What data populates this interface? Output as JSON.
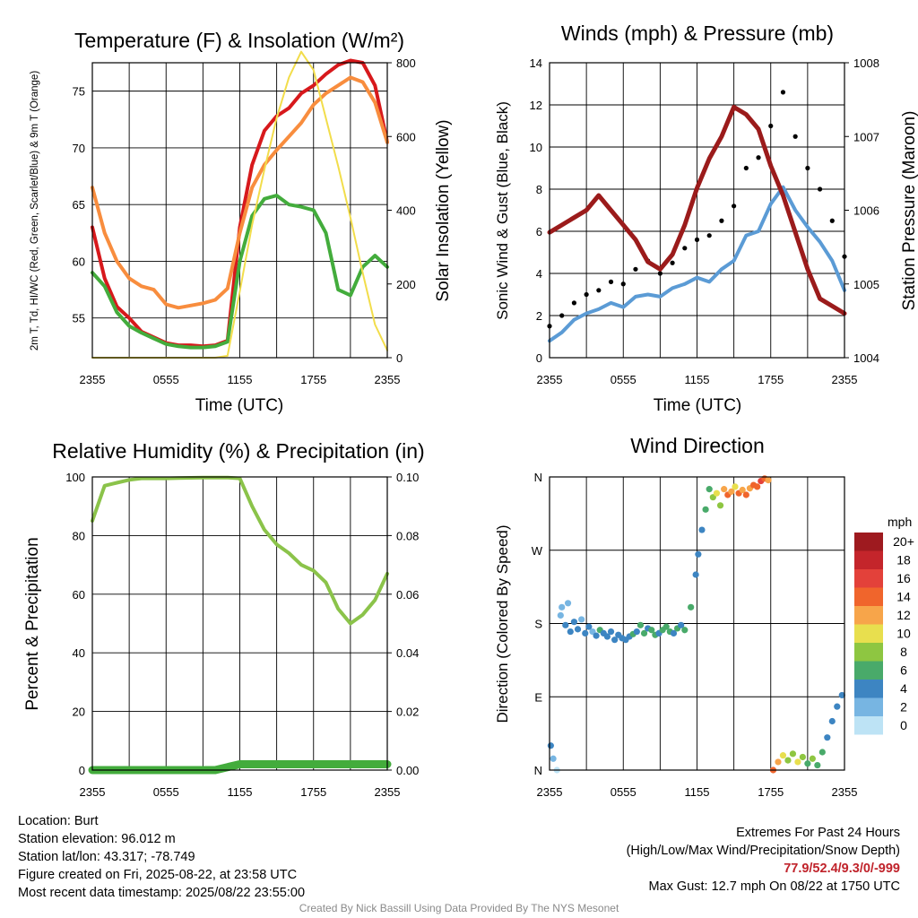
{
  "chart_data": [
    {
      "type": "line",
      "title": "Temperature (F) & Insolation (W/m²)",
      "xlabel": "Time (UTC)",
      "ylabel": "2m T, Td, HI/WC (Red, Green, Scarlet/Blue) & 9m T (Orange)",
      "ylabel2": "Solar Insolation (Yellow)",
      "x_ticks": [
        "2355",
        "0555",
        "1155",
        "1755",
        "2355"
      ],
      "y_ticks": [
        55,
        60,
        65,
        70,
        75
      ],
      "y2_ticks": [
        0,
        200,
        400,
        600,
        800
      ],
      "ylim": [
        51.5,
        77.5
      ],
      "y2lim": [
        0,
        800
      ],
      "x": [
        0,
        1,
        2,
        3,
        4,
        5,
        6,
        7,
        8,
        9,
        10,
        11,
        12,
        13,
        14,
        15,
        16,
        17,
        18,
        19,
        20,
        21,
        22,
        23,
        24
      ],
      "series": [
        {
          "color": "#d7191c",
          "axis": "left",
          "values": [
            63.0,
            58.5,
            56.0,
            55.0,
            53.8,
            53.3,
            52.8,
            52.6,
            52.6,
            52.5,
            52.6,
            53.0,
            63.0,
            68.5,
            71.5,
            72.8,
            73.5,
            74.8,
            75.5,
            76.5,
            77.3,
            77.7,
            77.5,
            75.5,
            70.5
          ]
        },
        {
          "color": "#f88d3e",
          "axis": "left",
          "values": [
            66.5,
            62.5,
            60.0,
            58.5,
            57.8,
            57.5,
            56.2,
            55.9,
            56.1,
            56.3,
            56.6,
            57.6,
            62.5,
            66.5,
            68.5,
            69.8,
            71.0,
            72.2,
            73.8,
            74.8,
            75.5,
            76.2,
            75.8,
            74.0,
            70.5
          ]
        },
        {
          "color": "#43ac3c",
          "axis": "left",
          "values": [
            59.0,
            57.8,
            55.5,
            54.3,
            53.7,
            53.2,
            52.7,
            52.5,
            52.4,
            52.4,
            52.5,
            52.9,
            60.0,
            64.0,
            65.5,
            65.8,
            65.0,
            64.8,
            64.5,
            62.5,
            57.5,
            57.0,
            59.5,
            60.5,
            59.5
          ]
        },
        {
          "color": "#f2dd4b",
          "axis": "right",
          "values": [
            0,
            0,
            0,
            0,
            0,
            0,
            0,
            0,
            0,
            0,
            0,
            5,
            180,
            360,
            510,
            650,
            760,
            830,
            780,
            650,
            520,
            380,
            230,
            90,
            20
          ]
        }
      ]
    },
    {
      "type": "line",
      "title": "Winds (mph) & Pressure (mb)",
      "xlabel": "Time (UTC)",
      "ylabel": "Sonic Wind & Gust (Blue, Black)",
      "ylabel2": "Station Pressure (Maroon)",
      "x_ticks": [
        "2355",
        "0555",
        "1155",
        "1755",
        "2355"
      ],
      "y_ticks": [
        0,
        2,
        4,
        6,
        8,
        10,
        12,
        14
      ],
      "y2_ticks": [
        1004,
        1005,
        1006,
        1007,
        1008
      ],
      "ylim": [
        0,
        14
      ],
      "y2lim": [
        1004,
        1008
      ],
      "x": [
        0,
        1,
        2,
        3,
        4,
        5,
        6,
        7,
        8,
        9,
        10,
        11,
        12,
        13,
        14,
        15,
        16,
        17,
        18,
        19,
        20,
        21,
        22,
        23,
        24
      ],
      "series": [
        {
          "color": "#5b9bd5",
          "axis": "left",
          "values": [
            0.8,
            1.2,
            1.8,
            2.1,
            2.3,
            2.6,
            2.4,
            2.9,
            3.0,
            2.9,
            3.3,
            3.5,
            3.8,
            3.6,
            4.2,
            4.6,
            5.8,
            6.0,
            7.3,
            8.1,
            7.0,
            6.2,
            5.5,
            4.6,
            3.2
          ]
        },
        {
          "color": "#000000",
          "axis": "left",
          "values": [
            1.5,
            2.0,
            2.6,
            3.0,
            3.2,
            3.6,
            3.5,
            4.2,
            4.6,
            4.0,
            4.5,
            5.2,
            5.6,
            5.8,
            6.5,
            7.2,
            9.0,
            9.5,
            11.0,
            12.6,
            10.5,
            9.0,
            8.0,
            6.5,
            4.8
          ]
        },
        {
          "color": "#9b1b1b",
          "axis": "right",
          "values": [
            1005.7,
            1005.8,
            1005.9,
            1006.0,
            1006.2,
            1006.0,
            1005.8,
            1005.6,
            1005.3,
            1005.2,
            1005.4,
            1005.8,
            1006.3,
            1006.7,
            1007.0,
            1007.4,
            1007.3,
            1007.1,
            1006.6,
            1006.2,
            1005.7,
            1005.2,
            1004.8,
            1004.7,
            1004.6
          ]
        }
      ]
    },
    {
      "type": "line",
      "title": "Relative Humidity (%) & Precipitation (in)",
      "ylabel": "Percent & Precipitation",
      "x_ticks": [
        "2355",
        "0555",
        "1155",
        "1755",
        "2355"
      ],
      "y_ticks": [
        0,
        20,
        40,
        60,
        80,
        100
      ],
      "y2_ticks": [
        "0.00",
        "0.02",
        "0.04",
        "0.06",
        "0.08",
        "0.10"
      ],
      "ylim": [
        0,
        100
      ],
      "y2lim": [
        0,
        0.1
      ],
      "x": [
        0,
        1,
        2,
        3,
        4,
        5,
        6,
        7,
        8,
        9,
        10,
        11,
        12,
        13,
        14,
        15,
        16,
        17,
        18,
        19,
        20,
        21,
        22,
        23,
        24
      ],
      "series": [
        {
          "color": "#8bc34a",
          "axis": "left",
          "values": [
            85.0,
            97.0,
            98.0,
            99.0,
            99.5,
            99.5,
            99.5,
            99.6,
            99.7,
            99.8,
            99.8,
            99.8,
            99.5,
            90.0,
            82.0,
            77.0,
            74.0,
            70.0,
            68.0,
            64.0,
            55.0,
            50.0,
            53.0,
            58.0,
            67.0
          ]
        },
        {
          "color": "#43ac3c",
          "axis": "right",
          "values": [
            0,
            0,
            0,
            0,
            0,
            0,
            0,
            0,
            0,
            0,
            0,
            0.001,
            0.002,
            0.002,
            0.002,
            0.002,
            0.002,
            0.002,
            0.002,
            0.002,
            0.002,
            0.002,
            0.002,
            0.002,
            0.002
          ]
        }
      ]
    },
    {
      "type": "scatter",
      "title": "Wind Direction",
      "ylabel": "Direction (Colored By Speed)",
      "x_ticks": [
        "2355",
        "0555",
        "1155",
        "1755",
        "2355"
      ],
      "y_ticks": [
        "N",
        "E",
        "S",
        "W",
        "N"
      ],
      "ylim": [
        0,
        360
      ],
      "legend_title": "mph",
      "legend_labels": [
        "20+",
        "18",
        "16",
        "14",
        "12",
        "10",
        "8",
        "6",
        "4",
        "2",
        "0"
      ],
      "legend_colors": [
        "#9e1a1f",
        "#c4252b",
        "#e3413a",
        "#f0652c",
        "#f7a54a",
        "#e8df4e",
        "#8ec641",
        "#49aa6a",
        "#3d85c2",
        "#77b5e2",
        "#bde3f5"
      ],
      "points": [
        {
          "x": 0.1,
          "y": 30,
          "s": 2
        },
        {
          "x": 0.3,
          "y": 14,
          "s": 1
        },
        {
          "x": 0.6,
          "y": 0,
          "s": 0
        },
        {
          "x": 0.9,
          "y": 190,
          "s": 1
        },
        {
          "x": 1.0,
          "y": 200,
          "s": 1
        },
        {
          "x": 1.3,
          "y": 178,
          "s": 2
        },
        {
          "x": 1.5,
          "y": 205,
          "s": 1
        },
        {
          "x": 1.7,
          "y": 170,
          "s": 2
        },
        {
          "x": 2.0,
          "y": 182,
          "s": 2
        },
        {
          "x": 2.3,
          "y": 173,
          "s": 2
        },
        {
          "x": 2.6,
          "y": 185,
          "s": 1
        },
        {
          "x": 2.9,
          "y": 168,
          "s": 2
        },
        {
          "x": 3.2,
          "y": 176,
          "s": 2
        },
        {
          "x": 3.5,
          "y": 170,
          "s": 1
        },
        {
          "x": 3.8,
          "y": 165,
          "s": 2
        },
        {
          "x": 4.1,
          "y": 172,
          "s": 3
        },
        {
          "x": 4.4,
          "y": 168,
          "s": 2
        },
        {
          "x": 4.7,
          "y": 164,
          "s": 2
        },
        {
          "x": 5.0,
          "y": 170,
          "s": 2
        },
        {
          "x": 5.3,
          "y": 160,
          "s": 2
        },
        {
          "x": 5.6,
          "y": 166,
          "s": 2
        },
        {
          "x": 5.9,
          "y": 162,
          "s": 2
        },
        {
          "x": 6.2,
          "y": 160,
          "s": 2
        },
        {
          "x": 6.5,
          "y": 164,
          "s": 2
        },
        {
          "x": 6.8,
          "y": 167,
          "s": 3
        },
        {
          "x": 7.1,
          "y": 170,
          "s": 2
        },
        {
          "x": 7.4,
          "y": 178,
          "s": 3
        },
        {
          "x": 7.7,
          "y": 168,
          "s": 3
        },
        {
          "x": 8.0,
          "y": 174,
          "s": 2
        },
        {
          "x": 8.3,
          "y": 172,
          "s": 3
        },
        {
          "x": 8.6,
          "y": 166,
          "s": 3
        },
        {
          "x": 8.9,
          "y": 168,
          "s": 2
        },
        {
          "x": 9.2,
          "y": 172,
          "s": 3
        },
        {
          "x": 9.5,
          "y": 176,
          "s": 3
        },
        {
          "x": 9.8,
          "y": 170,
          "s": 3
        },
        {
          "x": 10.1,
          "y": 168,
          "s": 2
        },
        {
          "x": 10.4,
          "y": 174,
          "s": 3
        },
        {
          "x": 10.7,
          "y": 178,
          "s": 2
        },
        {
          "x": 11.0,
          "y": 172,
          "s": 3
        },
        {
          "x": 11.5,
          "y": 200,
          "s": 3
        },
        {
          "x": 11.9,
          "y": 240,
          "s": 2
        },
        {
          "x": 12.1,
          "y": 265,
          "s": 2
        },
        {
          "x": 12.4,
          "y": 295,
          "s": 2
        },
        {
          "x": 12.7,
          "y": 320,
          "s": 3
        },
        {
          "x": 13.0,
          "y": 345,
          "s": 3
        },
        {
          "x": 13.3,
          "y": 335,
          "s": 4
        },
        {
          "x": 13.6,
          "y": 340,
          "s": 5
        },
        {
          "x": 13.9,
          "y": 325,
          "s": 4
        },
        {
          "x": 14.2,
          "y": 345,
          "s": 6
        },
        {
          "x": 14.5,
          "y": 338,
          "s": 7
        },
        {
          "x": 14.8,
          "y": 342,
          "s": 6
        },
        {
          "x": 15.1,
          "y": 348,
          "s": 5
        },
        {
          "x": 15.4,
          "y": 340,
          "s": 7
        },
        {
          "x": 15.7,
          "y": 344,
          "s": 6
        },
        {
          "x": 16.0,
          "y": 338,
          "s": 7
        },
        {
          "x": 16.3,
          "y": 346,
          "s": 6
        },
        {
          "x": 16.6,
          "y": 350,
          "s": 7
        },
        {
          "x": 16.9,
          "y": 348,
          "s": 7
        },
        {
          "x": 17.2,
          "y": 355,
          "s": 8
        },
        {
          "x": 17.5,
          "y": 358,
          "s": 7
        },
        {
          "x": 17.8,
          "y": 356,
          "s": 6
        },
        {
          "x": 18.2,
          "y": 0,
          "s": 7
        },
        {
          "x": 18.6,
          "y": 10,
          "s": 6
        },
        {
          "x": 19.0,
          "y": 18,
          "s": 5
        },
        {
          "x": 19.4,
          "y": 12,
          "s": 4
        },
        {
          "x": 19.8,
          "y": 20,
          "s": 4
        },
        {
          "x": 20.2,
          "y": 10,
          "s": 5
        },
        {
          "x": 20.6,
          "y": 16,
          "s": 4
        },
        {
          "x": 21.0,
          "y": 8,
          "s": 3
        },
        {
          "x": 21.4,
          "y": 14,
          "s": 4
        },
        {
          "x": 21.8,
          "y": 6,
          "s": 3
        },
        {
          "x": 22.2,
          "y": 22,
          "s": 3
        },
        {
          "x": 22.6,
          "y": 40,
          "s": 2
        },
        {
          "x": 23.0,
          "y": 60,
          "s": 2
        },
        {
          "x": 23.4,
          "y": 78,
          "s": 2
        },
        {
          "x": 23.8,
          "y": 92,
          "s": 2
        }
      ]
    }
  ],
  "station": {
    "location": "Location: Burt",
    "elevation": "Station elevation: 96.012 m",
    "latlon": "Station lat/lon: 43.317; -78.749",
    "created": "Figure created on Fri, 2025-08-22, at 23:58 UTC",
    "recent": "Most recent data timestamp: 2025/08/22 23:55:00"
  },
  "extremes": {
    "title": "Extremes For Past 24 Hours",
    "subtitle": "(High/Low/Max Wind/Precipitation/Snow Depth)",
    "values": "77.9/52.4/9.3/0/-999",
    "max_gust": "Max Gust: 12.7 mph On 08/22 at 1750 UTC"
  },
  "credit": "Created By Nick Bassill Using Data Provided By The NYS Mesonet"
}
